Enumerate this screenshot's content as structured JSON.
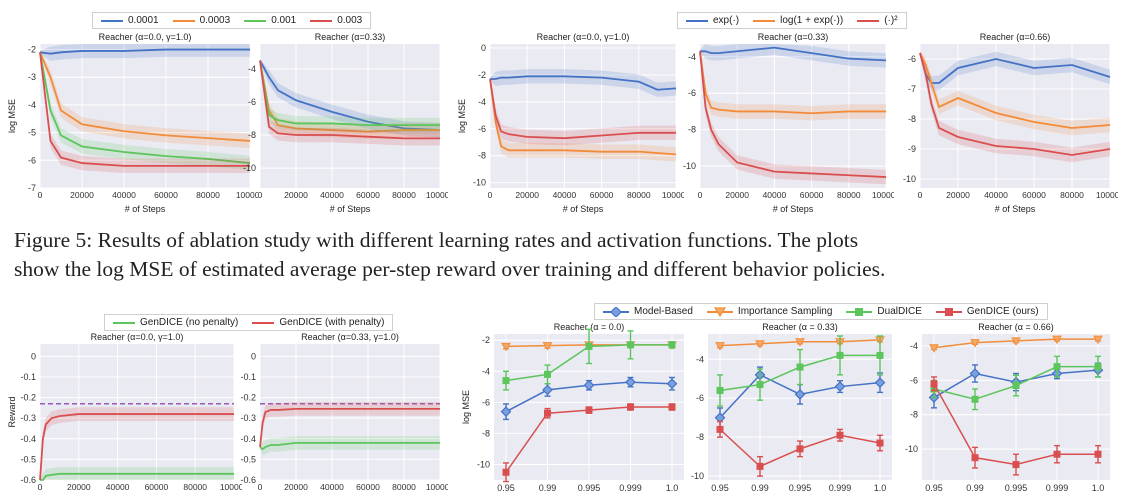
{
  "figure5": {
    "legend_lr": [
      {
        "label": "0.0001",
        "color": "#4472c4"
      },
      {
        "label": "0.0003",
        "color": "#f28c3a"
      },
      {
        "label": "0.001",
        "color": "#5cc55c"
      },
      {
        "label": "0.003",
        "color": "#d94f4f"
      }
    ],
    "legend_act": [
      {
        "label": "exp(·)",
        "color": "#4472c4"
      },
      {
        "label": "log(1 + exp(·))",
        "color": "#f28c3a"
      },
      {
        "label": "(·)²",
        "color": "#d94f4f"
      }
    ],
    "caption_line1": "Figure 5: Results of ablation study with different learning rates and activation functions. The plots",
    "caption_line2": "show the log MSE of estimated average per-step reward over training and different behavior policies."
  },
  "figure_bottom": {
    "legend_penalty": [
      {
        "label": "GenDICE (no penalty)",
        "color": "#5cc55c"
      },
      {
        "label": "GenDICE (with penalty)",
        "color": "#d94f4f"
      }
    ],
    "legend_methods": [
      {
        "label": "Model-Based",
        "color": "#4472c4",
        "marker": "diamond"
      },
      {
        "label": "Importance Sampling",
        "color": "#f28c3a",
        "marker": "triangle"
      },
      {
        "label": "DualDICE",
        "color": "#5cc55c",
        "marker": "square"
      },
      {
        "label": "GenDICE (ours)",
        "color": "#d94f4f",
        "marker": "square"
      }
    ]
  },
  "chart_data": [
    {
      "id": "lr1",
      "type": "line",
      "title": "Reacher (α=0.0, γ=1.0)",
      "xlabel": "# of Steps",
      "ylabel": "log MSE",
      "xlim": [
        0,
        100000
      ],
      "ylim": [
        -7,
        -1.8
      ],
      "xticks": [
        0,
        20000,
        40000,
        60000,
        80000,
        100000
      ],
      "yticks": [
        -7,
        -6,
        -5,
        -4,
        -3,
        -2
      ],
      "grid": true,
      "x": [
        0,
        5000,
        10000,
        20000,
        40000,
        60000,
        80000,
        100000
      ],
      "series": [
        {
          "name": "0.0001",
          "color": "#4472c4",
          "values": [
            -2.1,
            -2.15,
            -2.1,
            -2.05,
            -2.05,
            -2.0,
            -2.0,
            -2.0
          ]
        },
        {
          "name": "0.0003",
          "color": "#f28c3a",
          "values": [
            -2.1,
            -3.0,
            -4.2,
            -4.7,
            -4.95,
            -5.1,
            -5.2,
            -5.3
          ]
        },
        {
          "name": "0.001",
          "color": "#5cc55c",
          "values": [
            -2.1,
            -4.2,
            -5.1,
            -5.5,
            -5.7,
            -5.85,
            -5.95,
            -6.1
          ]
        },
        {
          "name": "0.003",
          "color": "#d94f4f",
          "values": [
            -2.1,
            -5.3,
            -5.9,
            -6.1,
            -6.2,
            -6.2,
            -6.2,
            -6.2
          ]
        }
      ]
    },
    {
      "id": "lr2",
      "type": "line",
      "title": "Reacher (α=0.33)",
      "xlabel": "# of Steps",
      "ylabel": "",
      "xlim": [
        0,
        100000
      ],
      "ylim": [
        -11.2,
        -2.5
      ],
      "xticks": [
        0,
        20000,
        40000,
        60000,
        80000,
        100000
      ],
      "yticks": [
        -10,
        -8,
        -6,
        -4
      ],
      "grid": true,
      "x": [
        0,
        5000,
        10000,
        20000,
        40000,
        60000,
        80000,
        100000
      ],
      "series": [
        {
          "name": "0.0001",
          "color": "#4472c4",
          "values": [
            -3.5,
            -4.5,
            -5.3,
            -5.9,
            -6.6,
            -7.2,
            -7.6,
            -7.7
          ]
        },
        {
          "name": "0.0003",
          "color": "#f28c3a",
          "values": [
            -3.5,
            -6.5,
            -7.4,
            -7.6,
            -7.7,
            -7.8,
            -7.7,
            -7.7
          ]
        },
        {
          "name": "0.001",
          "color": "#5cc55c",
          "values": [
            -3.5,
            -6.8,
            -7.1,
            -7.3,
            -7.3,
            -7.4,
            -7.4,
            -7.4
          ]
        },
        {
          "name": "0.003",
          "color": "#d94f4f",
          "values": [
            -3.5,
            -7.5,
            -7.9,
            -8.0,
            -8.0,
            -8.1,
            -8.2,
            -8.2
          ]
        }
      ]
    },
    {
      "id": "act1",
      "type": "line",
      "title": "Reacher (α=0.0, γ=1.0)",
      "xlabel": "# of Steps",
      "ylabel": "log MSE",
      "xlim": [
        0,
        100000
      ],
      "ylim": [
        -10.4,
        0.3
      ],
      "xticks": [
        0,
        20000,
        40000,
        60000,
        80000,
        100000
      ],
      "yticks": [
        -10,
        -8,
        -6,
        -4,
        -2,
        0
      ],
      "grid": true,
      "x": [
        0,
        3000,
        6000,
        10000,
        20000,
        40000,
        60000,
        80000,
        90000,
        100000
      ],
      "series": [
        {
          "name": "exp(·)",
          "color": "#4472c4",
          "values": [
            -2.3,
            -2.3,
            -2.2,
            -2.2,
            -2.1,
            -2.1,
            -2.2,
            -2.5,
            -3.1,
            -3.0
          ]
        },
        {
          "name": "log(1 + exp(·))",
          "color": "#f28c3a",
          "values": [
            -2.3,
            -5.5,
            -7.3,
            -7.6,
            -7.6,
            -7.6,
            -7.7,
            -7.7,
            -7.8,
            -7.9
          ]
        },
        {
          "name": "(·)²",
          "color": "#d94f4f",
          "values": [
            -2.3,
            -5.0,
            -6.2,
            -6.4,
            -6.6,
            -6.7,
            -6.5,
            -6.3,
            -6.3,
            -6.3
          ]
        }
      ]
    },
    {
      "id": "act2",
      "type": "line",
      "title": "Reacher (α=0.33)",
      "xlabel": "# of Steps",
      "ylabel": "",
      "xlim": [
        0,
        100000
      ],
      "ylim": [
        -11.2,
        -3.3
      ],
      "xticks": [
        0,
        20000,
        40000,
        60000,
        80000,
        100000
      ],
      "yticks": [
        -10,
        -8,
        -6,
        -4
      ],
      "grid": true,
      "x": [
        0,
        3000,
        6000,
        10000,
        20000,
        40000,
        60000,
        80000,
        100000
      ],
      "series": [
        {
          "name": "exp(·)",
          "color": "#4472c4",
          "values": [
            -3.7,
            -3.7,
            -3.8,
            -3.8,
            -3.7,
            -3.5,
            -3.8,
            -4.1,
            -4.2
          ]
        },
        {
          "name": "log(1 + exp(·))",
          "color": "#f28c3a",
          "values": [
            -3.7,
            -6.0,
            -6.8,
            -6.9,
            -7.0,
            -7.0,
            -7.1,
            -7.0,
            -7.0
          ]
        },
        {
          "name": "(·)²",
          "color": "#d94f4f",
          "values": [
            -3.7,
            -6.8,
            -8.0,
            -8.8,
            -9.8,
            -10.3,
            -10.4,
            -10.5,
            -10.6
          ]
        }
      ]
    },
    {
      "id": "act3",
      "type": "line",
      "title": "Reacher (α=0.66)",
      "xlabel": "# of Steps",
      "ylabel": "",
      "xlim": [
        0,
        100000
      ],
      "ylim": [
        -10.3,
        -5.5
      ],
      "xticks": [
        0,
        20000,
        40000,
        60000,
        80000,
        100000
      ],
      "yticks": [
        -10,
        -9,
        -8,
        -7,
        -6
      ],
      "grid": true,
      "x": [
        0,
        3000,
        6000,
        10000,
        20000,
        40000,
        60000,
        80000,
        100000
      ],
      "series": [
        {
          "name": "exp(·)",
          "color": "#4472c4",
          "values": [
            -5.8,
            -6.5,
            -6.8,
            -6.8,
            -6.3,
            -6.0,
            -6.3,
            -6.2,
            -6.6
          ]
        },
        {
          "name": "log(1 + exp(·))",
          "color": "#f28c3a",
          "values": [
            -5.8,
            -6.2,
            -6.8,
            -7.6,
            -7.3,
            -7.8,
            -8.1,
            -8.3,
            -8.2
          ]
        },
        {
          "name": "(·)²",
          "color": "#d94f4f",
          "values": [
            -5.8,
            -6.5,
            -7.5,
            -8.3,
            -8.6,
            -8.9,
            -9.0,
            -9.2,
            -9.0
          ]
        }
      ]
    },
    {
      "id": "pen1",
      "type": "line",
      "title": "Reacher (α=0.0, γ=1.0)",
      "xlabel": "",
      "ylabel": "Reward",
      "xlim": [
        0,
        100000
      ],
      "ylim": [
        -0.6,
        0.06
      ],
      "xticks": [
        0,
        20000,
        40000,
        60000,
        80000,
        100000
      ],
      "yticks": [
        -0.6,
        -0.5,
        -0.4,
        -0.3,
        -0.2,
        -0.1,
        0.0
      ],
      "grid": true,
      "reference": -0.23,
      "x": [
        0,
        1500,
        3000,
        6000,
        10000,
        20000,
        40000,
        60000,
        80000,
        100000
      ],
      "series": [
        {
          "name": "GenDICE (no penalty)",
          "color": "#5cc55c",
          "values": [
            -0.6,
            -0.6,
            -0.58,
            -0.575,
            -0.57,
            -0.57,
            -0.57,
            -0.57,
            -0.57,
            -0.57
          ]
        },
        {
          "name": "GenDICE (with penalty)",
          "color": "#d94f4f",
          "values": [
            -0.6,
            -0.4,
            -0.33,
            -0.3,
            -0.29,
            -0.28,
            -0.28,
            -0.28,
            -0.28,
            -0.28
          ]
        }
      ]
    },
    {
      "id": "pen2",
      "type": "line",
      "title": "Reacher (α=0.33, γ=1.0)",
      "xlabel": "",
      "ylabel": "",
      "xlim": [
        0,
        100000
      ],
      "ylim": [
        -0.6,
        0.06
      ],
      "xticks": [
        0,
        20000,
        40000,
        60000,
        80000,
        100000
      ],
      "yticks": [
        -0.6,
        -0.5,
        -0.4,
        -0.3,
        -0.2,
        -0.1,
        0.0
      ],
      "grid": true,
      "reference": -0.23,
      "x": [
        0,
        1500,
        3000,
        6000,
        10000,
        20000,
        40000,
        60000,
        80000,
        100000
      ],
      "series": [
        {
          "name": "GenDICE (no penalty)",
          "color": "#5cc55c",
          "values": [
            -0.44,
            -0.45,
            -0.44,
            -0.43,
            -0.43,
            -0.42,
            -0.42,
            -0.42,
            -0.42,
            -0.42
          ]
        },
        {
          "name": "GenDICE (with penalty)",
          "color": "#d94f4f",
          "values": [
            -0.44,
            -0.32,
            -0.27,
            -0.26,
            -0.26,
            -0.255,
            -0.255,
            -0.255,
            -0.255,
            -0.255
          ]
        }
      ]
    },
    {
      "id": "m1",
      "type": "line",
      "title": "Reacher (α = 0.0)",
      "xlabel": "",
      "ylabel": "log MSE",
      "categorical": true,
      "categories": [
        "0.95",
        "0.99",
        "0.995",
        "0.999",
        "1.0"
      ],
      "ylim": [
        -11,
        -1.6
      ],
      "yticks": [
        -10,
        -8,
        -6,
        -4,
        -2
      ],
      "grid": true,
      "series": [
        {
          "name": "Model-Based",
          "color": "#4472c4",
          "marker": "diamond",
          "values": [
            -6.6,
            -5.2,
            -4.9,
            -4.7,
            -4.8
          ],
          "err": [
            0.5,
            0.4,
            0.3,
            0.3,
            0.4
          ]
        },
        {
          "name": "Importance Sampling",
          "color": "#f28c3a",
          "marker": "triangle",
          "values": [
            -2.4,
            -2.35,
            -2.3,
            -2.3,
            -2.3
          ],
          "err": [
            0.15,
            0.15,
            0.15,
            0.15,
            0.15
          ]
        },
        {
          "name": "DualDICE",
          "color": "#5cc55c",
          "marker": "square",
          "values": [
            -4.6,
            -4.2,
            -2.4,
            -2.3,
            -2.3
          ],
          "err": [
            0.6,
            0.6,
            1.1,
            0.9,
            0.2
          ]
        },
        {
          "name": "GenDICE (ours)",
          "color": "#d94f4f",
          "marker": "square",
          "values": [
            -10.5,
            -6.7,
            -6.5,
            -6.3,
            -6.3
          ],
          "err": [
            0.6,
            0.3,
            0.2,
            0.2,
            0.2
          ]
        }
      ]
    },
    {
      "id": "m2",
      "type": "line",
      "title": "Reacher (α = 0.33)",
      "xlabel": "",
      "ylabel": "",
      "categorical": true,
      "categories": [
        "0.95",
        "0.99",
        "0.995",
        "0.999",
        "1.0"
      ],
      "ylim": [
        -10.2,
        -2.7
      ],
      "yticks": [
        -10,
        -8,
        -6,
        -4
      ],
      "grid": true,
      "series": [
        {
          "name": "Model-Based",
          "color": "#4472c4",
          "marker": "diamond",
          "values": [
            -7.0,
            -4.8,
            -5.8,
            -5.4,
            -5.2
          ],
          "err": [
            0.5,
            0.4,
            0.5,
            0.3,
            0.5
          ]
        },
        {
          "name": "Importance Sampling",
          "color": "#f28c3a",
          "marker": "triangle",
          "values": [
            -3.3,
            -3.2,
            -3.1,
            -3.1,
            -3.0
          ],
          "err": [
            0.1,
            0.1,
            0.1,
            0.1,
            0.1
          ]
        },
        {
          "name": "DualDICE",
          "color": "#5cc55c",
          "marker": "square",
          "values": [
            -5.6,
            -5.3,
            -4.4,
            -3.8,
            -3.8
          ],
          "err": [
            0.8,
            0.8,
            0.9,
            1.0,
            1.0
          ]
        },
        {
          "name": "GenDICE (ours)",
          "color": "#d94f4f",
          "marker": "square",
          "values": [
            -7.6,
            -9.5,
            -8.6,
            -7.9,
            -8.3
          ],
          "err": [
            0.4,
            0.5,
            0.4,
            0.3,
            0.4
          ]
        }
      ]
    },
    {
      "id": "m3",
      "type": "line",
      "title": "Reacher (α = 0.66)",
      "xlabel": "",
      "ylabel": "",
      "categorical": true,
      "categories": [
        "0.95",
        "0.99",
        "0.995",
        "0.999",
        "1.0"
      ],
      "ylim": [
        -11.8,
        -3.3
      ],
      "yticks": [
        -10,
        -8,
        -6,
        -4
      ],
      "grid": true,
      "series": [
        {
          "name": "Model-Based",
          "color": "#4472c4",
          "marker": "diamond",
          "values": [
            -7.0,
            -5.6,
            -6.1,
            -5.6,
            -5.4
          ],
          "err": [
            0.6,
            0.5,
            0.5,
            0.3,
            0.4
          ]
        },
        {
          "name": "Importance Sampling",
          "color": "#f28c3a",
          "marker": "triangle",
          "values": [
            -4.1,
            -3.8,
            -3.7,
            -3.6,
            -3.6
          ],
          "err": [
            0.1,
            0.1,
            0.1,
            0.1,
            0.1
          ]
        },
        {
          "name": "DualDICE",
          "color": "#5cc55c",
          "marker": "square",
          "values": [
            -6.5,
            -7.1,
            -6.3,
            -5.2,
            -5.2
          ],
          "err": [
            0.5,
            0.6,
            0.6,
            0.6,
            0.6
          ]
        },
        {
          "name": "GenDICE (ours)",
          "color": "#d94f4f",
          "marker": "square",
          "values": [
            -6.2,
            -10.5,
            -10.9,
            -10.3,
            -10.3
          ],
          "err": [
            0.4,
            0.6,
            0.6,
            0.5,
            0.5
          ]
        }
      ]
    }
  ]
}
